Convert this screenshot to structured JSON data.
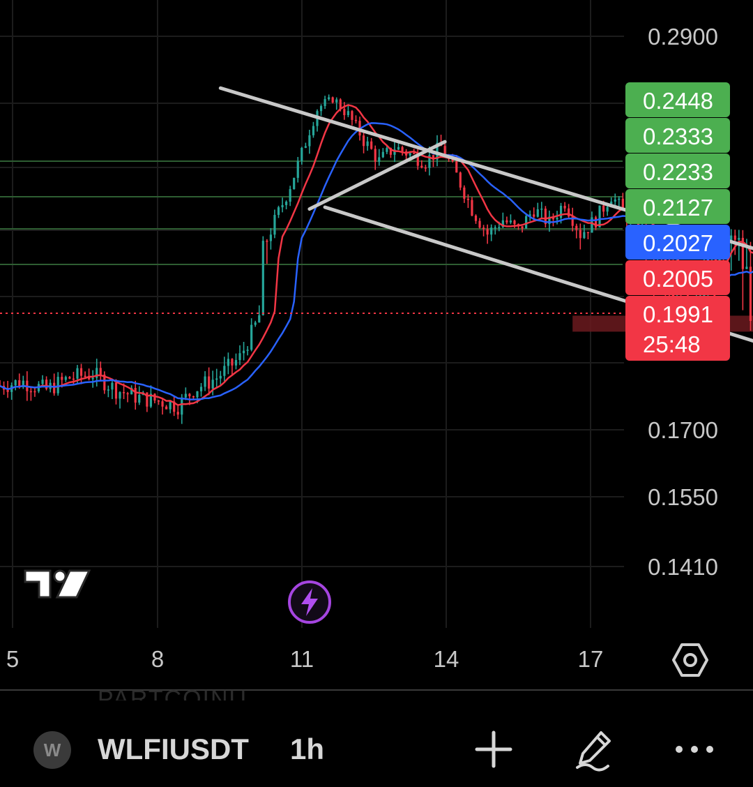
{
  "chart_data": {
    "type": "candlestick",
    "symbol": "WLFIUSDT",
    "interval": "1h",
    "x_ticks": [
      "5",
      "8",
      "11",
      "14",
      "17"
    ],
    "y_ticks": [
      "0.2900",
      "0.1700",
      "0.1550",
      "0.1410"
    ],
    "price_tags": [
      {
        "label": "0.2448",
        "color": "#4caf50"
      },
      {
        "label": "0.2333",
        "color": "#4caf50"
      },
      {
        "label": "0.2233",
        "color": "#4caf50"
      },
      {
        "label": "0.2127",
        "color": "#4caf50"
      },
      {
        "label": "0.2027",
        "color": "#2962ff"
      },
      {
        "label": "0.2005",
        "color": "#f23645"
      },
      {
        "label": "0.1991",
        "color": "#f23645",
        "countdown": "25:48"
      }
    ],
    "horizontal_levels": [
      0.2448,
      0.2333,
      0.2233,
      0.2127
    ],
    "current_price": 0.1991,
    "colors": {
      "up": "#26a69a",
      "down": "#f23645",
      "ma_fast": "#f23645",
      "ma_slow": "#2962ff",
      "level_line": "#2e5e32",
      "channel": "#c8c8c8",
      "zone": "#6b1a1f"
    },
    "price_path": [
      [
        0,
        0.181
      ],
      [
        6,
        0.182
      ],
      [
        12,
        0.18
      ],
      [
        18,
        0.183
      ],
      [
        24,
        0.184
      ],
      [
        30,
        0.18
      ],
      [
        36,
        0.178
      ],
      [
        42,
        0.177
      ],
      [
        46,
        0.176
      ],
      [
        50,
        0.18
      ],
      [
        56,
        0.183
      ],
      [
        62,
        0.188
      ],
      [
        66,
        0.196
      ],
      [
        70,
        0.206
      ],
      [
        74,
        0.216
      ],
      [
        78,
        0.228
      ],
      [
        82,
        0.242
      ],
      [
        86,
        0.246
      ],
      [
        90,
        0.24
      ],
      [
        94,
        0.232
      ],
      [
        98,
        0.226
      ],
      [
        102,
        0.23
      ],
      [
        106,
        0.228
      ],
      [
        110,
        0.226
      ],
      [
        114,
        0.23
      ],
      [
        118,
        0.222
      ],
      [
        122,
        0.212
      ],
      [
        126,
        0.205
      ],
      [
        130,
        0.209
      ],
      [
        134,
        0.206
      ],
      [
        138,
        0.212
      ],
      [
        142,
        0.208
      ],
      [
        146,
        0.214
      ],
      [
        150,
        0.205
      ],
      [
        154,
        0.209
      ],
      [
        158,
        0.216
      ],
      [
        162,
        0.21
      ],
      [
        166,
        0.206
      ],
      [
        170,
        0.202
      ],
      [
        174,
        0.198
      ],
      [
        178,
        0.199
      ],
      [
        182,
        0.202
      ],
      [
        186,
        0.201
      ],
      [
        190,
        0.204
      ],
      [
        194,
        0.199
      ],
      [
        198,
        0.203
      ],
      [
        202,
        0.213
      ],
      [
        206,
        0.209
      ],
      [
        210,
        0.204
      ],
      [
        214,
        0.199
      ],
      [
        218,
        0.198
      ],
      [
        222,
        0.202
      ],
      [
        226,
        0.199
      ],
      [
        230,
        0.1991
      ]
    ],
    "channel_lines": [
      {
        "from": [
          57,
          0.2535
        ],
        "to": [
          268,
          0.194
        ]
      },
      {
        "from": [
          84,
          0.2125
        ],
        "to": [
          260,
          0.1725
        ]
      },
      {
        "from": [
          80,
          0.212
        ],
        "to": [
          115,
          0.2315
        ]
      }
    ],
    "zone": {
      "x_from": 148,
      "x_to": 262,
      "y_from": 0.1945,
      "y_to": 0.1985
    }
  },
  "toolbar": {
    "avatar_letter": "W",
    "symbol": "WLFIUSDT",
    "interval": "1h",
    "ghost_text": "PARTCOINU",
    "add_icon": "plus-icon",
    "draw_icon": "pencil-icon",
    "more_icon": "more-icon"
  }
}
